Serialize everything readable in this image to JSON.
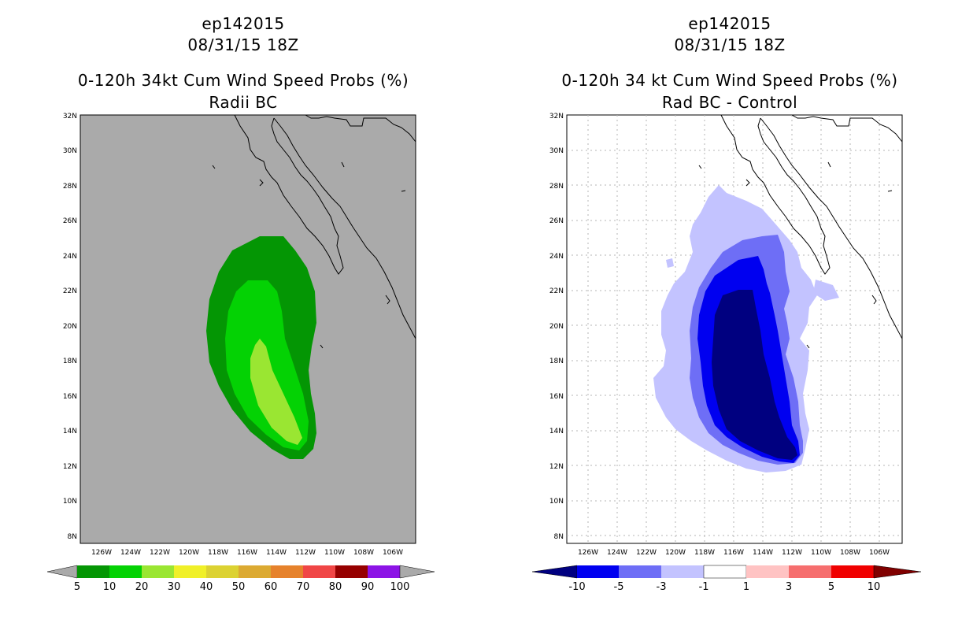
{
  "panels": [
    {
      "id": "left",
      "title_line1": "ep142015",
      "title_line2": "08/31/15 18Z",
      "title_line3": "0-120h 34kt Cum Wind Speed Probs (%)",
      "title_line4": "Radii BC",
      "map_background": "#aaaaaa",
      "colorbar_labels": [
        "5",
        "10",
        "20",
        "30",
        "40",
        "50",
        "60",
        "70",
        "80",
        "90",
        "100"
      ],
      "colorbar_colors": [
        "#049604",
        "#04d204",
        "#9ae632",
        "#f0f028",
        "#dcd232",
        "#dcaa32",
        "#e6822c",
        "#f04646",
        "#960000",
        "#8c14e6"
      ],
      "colorbar_end_color": "#aaaaaa"
    },
    {
      "id": "right",
      "title_line1": "ep142015",
      "title_line2": "08/31/15 18Z",
      "title_line3": "0-120h 34 kt Cum Wind Speed Probs (%)",
      "title_line4": "Rad BC - Control",
      "map_background": "#ffffff",
      "colorbar_labels": [
        "-10",
        "-5",
        "-3",
        "-1",
        "1",
        "3",
        "5",
        "10"
      ],
      "colorbar_colors": [
        "#0000f0",
        "#6e6ef6",
        "#c3c3ff",
        "#ffffff",
        "#ffc3c3",
        "#f66e6e",
        "#f00000"
      ],
      "colorbar_start_color": "#000080",
      "colorbar_end_color": "#800000"
    }
  ],
  "axes": {
    "lat_labels": [
      "32N",
      "30N",
      "28N",
      "26N",
      "24N",
      "22N",
      "20N",
      "18N",
      "16N",
      "14N",
      "12N",
      "10N",
      "8N"
    ],
    "lon_labels": [
      "126W",
      "124W",
      "122W",
      "120W",
      "118W",
      "116W",
      "114W",
      "112W",
      "110W",
      "108W",
      "106W"
    ],
    "lat_range": [
      7.5,
      32
    ],
    "lon_range": [
      127.9,
      104.9
    ]
  },
  "fill_colors": {
    "left_levels": [
      "#049604",
      "#04d204",
      "#9ae632"
    ],
    "right_levels": [
      "#c3c3ff",
      "#6e6ef6",
      "#0000f0",
      "#000080"
    ]
  }
}
